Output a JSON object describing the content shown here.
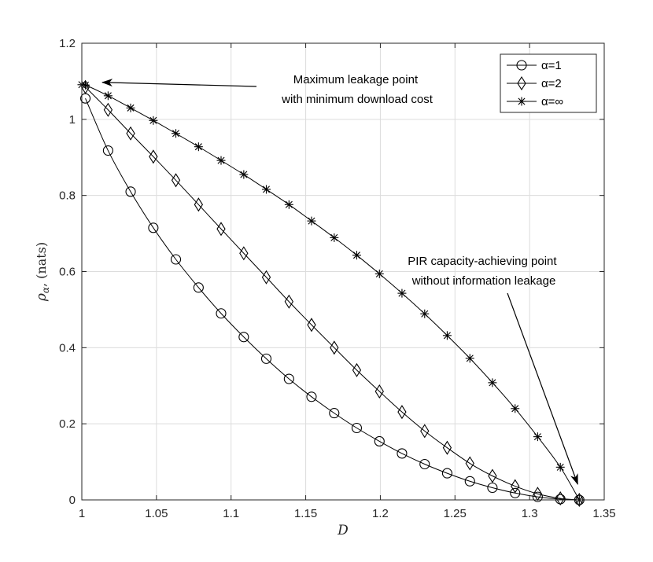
{
  "chart_data": {
    "type": "line",
    "title": "",
    "xlabel": "D",
    "ylabel_symbol": "ρ",
    "ylabel_subscript": "α",
    "ylabel_unit": ", (nats)",
    "xlim": [
      1,
      1.35
    ],
    "ylim": [
      0,
      1.2
    ],
    "xticks": [
      "1",
      "1.05",
      "1.1",
      "1.15",
      "1.2",
      "1.25",
      "1.3",
      "1.35"
    ],
    "yticks": [
      "0",
      "0.2",
      "0.4",
      "0.6",
      "0.8",
      "1",
      "1.2"
    ],
    "grid": true,
    "legend_position": "top-right",
    "series": [
      {
        "name": "α=1",
        "marker": "circle",
        "x": [
          1.0024,
          1.0176,
          1.0327,
          1.0479,
          1.063,
          1.0782,
          1.0933,
          1.1085,
          1.1236,
          1.1388,
          1.1539,
          1.1691,
          1.1842,
          1.1994,
          1.2145,
          1.2297,
          1.2448,
          1.26,
          1.2751,
          1.2903,
          1.3054,
          1.3206,
          1.3333
        ],
        "y": [
          1.055,
          0.918,
          0.81,
          0.715,
          0.632,
          0.558,
          0.49,
          0.428,
          0.371,
          0.318,
          0.271,
          0.228,
          0.189,
          0.154,
          0.122,
          0.094,
          0.07,
          0.049,
          0.032,
          0.018,
          0.008,
          0.002,
          0
        ]
      },
      {
        "name": "α=2",
        "marker": "diamond",
        "x": [
          1.0024,
          1.0176,
          1.0327,
          1.0479,
          1.063,
          1.0782,
          1.0933,
          1.1085,
          1.1236,
          1.1388,
          1.1539,
          1.1691,
          1.1842,
          1.1994,
          1.2145,
          1.2297,
          1.2448,
          1.26,
          1.2751,
          1.2903,
          1.3054,
          1.3206,
          1.3333
        ],
        "y": [
          1.085,
          1.025,
          0.963,
          0.902,
          0.84,
          0.776,
          0.712,
          0.648,
          0.585,
          0.521,
          0.46,
          0.4,
          0.341,
          0.285,
          0.231,
          0.181,
          0.137,
          0.096,
          0.063,
          0.036,
          0.016,
          0.004,
          0
        ]
      },
      {
        "name": "α=∞",
        "marker": "star",
        "x": [
          1.0,
          1.0024,
          1.0176,
          1.0327,
          1.0479,
          1.063,
          1.0782,
          1.0933,
          1.1085,
          1.1236,
          1.1388,
          1.1539,
          1.1691,
          1.1842,
          1.1994,
          1.2145,
          1.2297,
          1.2448,
          1.26,
          1.2751,
          1.2903,
          1.3054,
          1.3206,
          1.3333
        ],
        "y": [
          1.091,
          1.09,
          1.062,
          1.03,
          0.997,
          0.963,
          0.928,
          0.892,
          0.855,
          0.816,
          0.776,
          0.733,
          0.689,
          0.643,
          0.594,
          0.543,
          0.489,
          0.432,
          0.372,
          0.308,
          0.24,
          0.166,
          0.086,
          0
        ]
      }
    ],
    "annotations": [
      {
        "lines": [
          "Maximum leakage point",
          "with minimum download cost"
        ],
        "point": [
          1.0,
          1.091
        ]
      },
      {
        "lines": [
          "PIR capacity-achieving point",
          "without information leakage"
        ],
        "point": [
          1.3333,
          0
        ]
      }
    ]
  }
}
